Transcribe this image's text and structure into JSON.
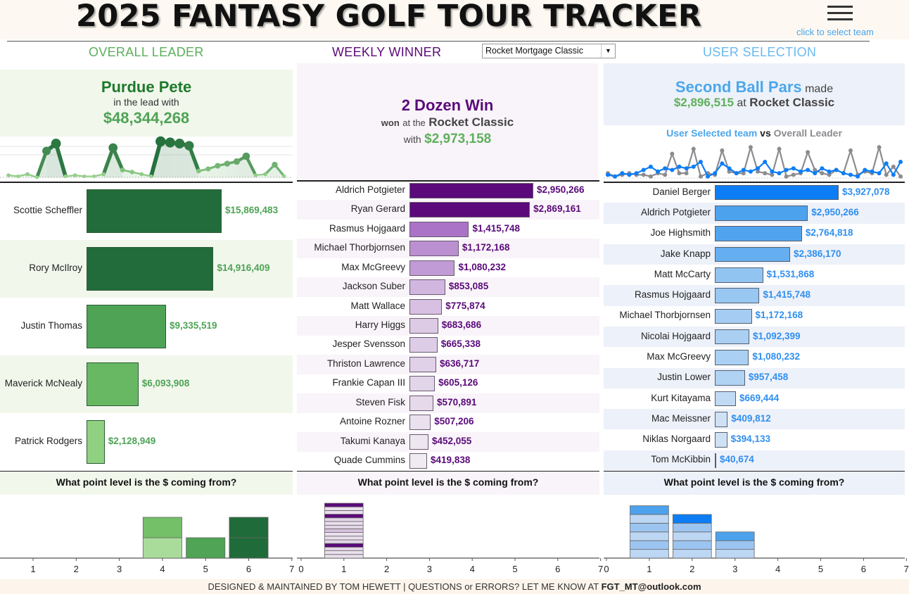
{
  "app": {
    "title": "2025 FANTASY GOLF TOUR TRACKER",
    "menu_icon": "hamburger-icon",
    "team_link": "click to select team",
    "footer_prefix": "DESIGNED & MAINTAINED BY TOM HEWETT  |  QUESTIONS or ERRORS? LET ME KNOW AT ",
    "footer_email": "FGT_MT@outlook.com"
  },
  "colors": {
    "green_dark": "#1e6b38",
    "green_mid": "#4ea355",
    "green_light": "#7dc26e",
    "green_text": "#4ea355",
    "green_bg": "#f2f7ec",
    "purple_dark": "#5a0a7a",
    "purple_text": "#5a0a7a",
    "purple_bg": "#f9f4f9",
    "blue_dark": "#0d7df5",
    "blue_text": "#2f8ff0",
    "blue_bg": "#edf1f9",
    "gray_line": "#8c8c90"
  },
  "overall": {
    "heading": "OVERALL LEADER",
    "leader_name": "Purdue Pete",
    "leader_sub": "in the lead with",
    "leader_amount": "$48,344,268",
    "spark": [
      2,
      1,
      3,
      0,
      25,
      32,
      1,
      2,
      1,
      1,
      3,
      28,
      7,
      5,
      3,
      1,
      34,
      33,
      32,
      30,
      6,
      8,
      11,
      13,
      15,
      20,
      2,
      3,
      12,
      1
    ],
    "bars": [
      {
        "name": "Scottie Scheffler",
        "value": 15869483,
        "label": "$15,869,483"
      },
      {
        "name": "Rory McIlroy",
        "value": 14916409,
        "label": "$14,916,409"
      },
      {
        "name": "Justin Thomas",
        "value": 9335519,
        "label": "$9,335,519"
      },
      {
        "name": "Maverick McNealy",
        "value": 6093908,
        "label": "$6,093,908"
      },
      {
        "name": "Patrick Rodgers",
        "value": 2128949,
        "label": "$2,128,949"
      }
    ],
    "question": "What point level is the $ coming from?",
    "levels": [
      {
        "x": 4,
        "segments": [
          "#a9dc9b",
          "#74c068"
        ]
      },
      {
        "x": 5,
        "segments": [
          "#50a455"
        ]
      },
      {
        "x": 6,
        "segments": [
          "#1f6b39",
          "#1f6b39"
        ]
      }
    ],
    "axis_ticks": [
      "1",
      "2",
      "3",
      "4",
      "5",
      "6",
      "7"
    ]
  },
  "weekly": {
    "heading": "WEEKLY WINNER",
    "selected_tournament": "Rocket Mortgage Classic",
    "winner_name": "2 Dozen Win",
    "won_at_prefix": "won",
    "won_at_mid": "at the",
    "won_at_event": "Rocket Classic",
    "with_prefix": "with",
    "with_amount": "$2,973,158",
    "bars": [
      {
        "name": "Aldrich Potgieter",
        "value": 2950266,
        "label": "$2,950,266"
      },
      {
        "name": "Ryan Gerard",
        "value": 2869161,
        "label": "$2,869,161"
      },
      {
        "name": "Rasmus Hojgaard",
        "value": 1415748,
        "label": "$1,415,748"
      },
      {
        "name": "Michael Thorbjornsen",
        "value": 1172168,
        "label": "$1,172,168"
      },
      {
        "name": "Max McGreevy",
        "value": 1080232,
        "label": "$1,080,232"
      },
      {
        "name": "Jackson Suber",
        "value": 853085,
        "label": "$853,085"
      },
      {
        "name": "Matt Wallace",
        "value": 775874,
        "label": "$775,874"
      },
      {
        "name": "Harry Higgs",
        "value": 683686,
        "label": "$683,686"
      },
      {
        "name": "Jesper Svensson",
        "value": 665338,
        "label": "$665,338"
      },
      {
        "name": "Thriston Lawrence",
        "value": 636717,
        "label": "$636,717"
      },
      {
        "name": "Frankie Capan III",
        "value": 605126,
        "label": "$605,126"
      },
      {
        "name": "Steven Fisk",
        "value": 570891,
        "label": "$570,891"
      },
      {
        "name": "Antoine Rozner",
        "value": 507206,
        "label": "$507,206"
      },
      {
        "name": "Takumi Kanaya",
        "value": 452055,
        "label": "$452,055"
      },
      {
        "name": "Quade Cummins",
        "value": 419838,
        "label": "$419,838"
      }
    ],
    "question": "What point level is the $ coming from?",
    "levels": [
      {
        "x": 1,
        "segments": [
          "#ebe0ee",
          "#ebe0ee",
          "#e3d5e8",
          "#5a0a7a",
          "#e3d5e8",
          "#ebe0ee",
          "#ebe0ee",
          "#d6c2de",
          "#e3d5e8",
          "#ebe0ee",
          "#e3d5e8",
          "#5a0a7a",
          "#ebe0ee",
          "#ebe0ee",
          "#5a0a7a"
        ]
      }
    ],
    "axis_ticks": [
      "0",
      "1",
      "2",
      "3",
      "4",
      "5",
      "6",
      "7"
    ]
  },
  "user": {
    "heading": "USER SELECTION",
    "team_name": "Second Ball Pars",
    "made_word": "made",
    "amount": "$2,896,515",
    "at_word": "at",
    "event": "Rocket Classic",
    "compare_a": "User Selected team",
    "compare_vs": "vs",
    "compare_b": "Overall Leader",
    "line_user": [
      2,
      1,
      3,
      2,
      3,
      5,
      7,
      4,
      6,
      5,
      7,
      6,
      7,
      10,
      1,
      3,
      9,
      6,
      3,
      5,
      4,
      6,
      10,
      4,
      3,
      5,
      6,
      4,
      5,
      3,
      6,
      4,
      5,
      3,
      2,
      1,
      5,
      4,
      3,
      9,
      2,
      10
    ],
    "line_leader": [
      3,
      1,
      2,
      3,
      2,
      2,
      1,
      3,
      2,
      15,
      3,
      3,
      18,
      1,
      3,
      2,
      17,
      4,
      3,
      3,
      19,
      4,
      3,
      2,
      18,
      1,
      2,
      3,
      16,
      5,
      3,
      2,
      5,
      3,
      17,
      2,
      4,
      3,
      19,
      2,
      7,
      1
    ],
    "bars": [
      {
        "name": "Daniel Berger",
        "value": 3927078,
        "label": "$3,927,078"
      },
      {
        "name": "Aldrich Potgieter",
        "value": 2950266,
        "label": "$2,950,266"
      },
      {
        "name": "Joe Highsmith",
        "value": 2764818,
        "label": "$2,764,818"
      },
      {
        "name": "Jake Knapp",
        "value": 2386170,
        "label": "$2,386,170"
      },
      {
        "name": "Matt McCarty",
        "value": 1531868,
        "label": "$1,531,868"
      },
      {
        "name": "Rasmus Hojgaard",
        "value": 1415748,
        "label": "$1,415,748"
      },
      {
        "name": "Michael Thorbjornsen",
        "value": 1172168,
        "label": "$1,172,168"
      },
      {
        "name": "Nicolai Hojgaard",
        "value": 1092399,
        "label": "$1,092,399"
      },
      {
        "name": "Max McGreevy",
        "value": 1080232,
        "label": "$1,080,232"
      },
      {
        "name": "Justin Lower",
        "value": 957458,
        "label": "$957,458"
      },
      {
        "name": "Kurt Kitayama",
        "value": 669444,
        "label": "$669,444"
      },
      {
        "name": "Mac Meissner",
        "value": 409812,
        "label": "$409,812"
      },
      {
        "name": "Niklas Norgaard",
        "value": 394133,
        "label": "$394,133"
      },
      {
        "name": "Tom McKibbin",
        "value": 40674,
        "label": "$40,674"
      }
    ],
    "question": "What point level is the $ coming from?",
    "levels": [
      {
        "x": 1,
        "segments": [
          "#bcd6f3",
          "#9cc4f0",
          "#bcd6f3",
          "#9cc4f0",
          "#bcd6f3",
          "#4da2ee"
        ]
      },
      {
        "x": 2,
        "segments": [
          "#bcd6f3",
          "#9cc4f0",
          "#bcd6f3",
          "#9cc4f0",
          "#0d7df5"
        ]
      },
      {
        "x": 3,
        "segments": [
          "#bcd6f3",
          "#9cc4f0",
          "#4da2ee"
        ]
      }
    ],
    "axis_ticks": [
      "0",
      "1",
      "2",
      "3",
      "4",
      "5",
      "6",
      "7"
    ]
  }
}
